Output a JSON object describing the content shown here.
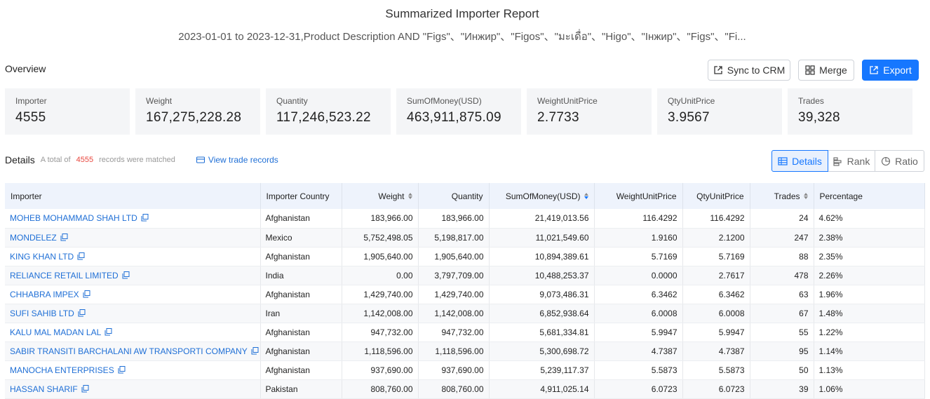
{
  "header": {
    "title": "Summarized Importer Report",
    "subtitle": "2023-01-01 to 2023-12-31,Product Description AND \"Figs\"、\"Инжир\"、\"Figos\"、\"มะเดื่อ\"、\"Higo\"、\"Інжир\"、\"Figs\"、\"Fi..."
  },
  "overview": {
    "label": "Overview",
    "buttons": {
      "sync": "Sync to CRM",
      "merge": "Merge",
      "export": "Export"
    },
    "stats": [
      {
        "label": "Importer",
        "value": "4555"
      },
      {
        "label": "Weight",
        "value": "167,275,228.28"
      },
      {
        "label": "Quantity",
        "value": "117,246,523.22"
      },
      {
        "label": "SumOfMoney(USD)",
        "value": "463,911,875.09"
      },
      {
        "label": "WeightUnitPrice",
        "value": "2.7733"
      },
      {
        "label": "QtyUnitPrice",
        "value": "3.9567"
      },
      {
        "label": "Trades",
        "value": "39,328"
      }
    ]
  },
  "details": {
    "title": "Details",
    "total_prefix": "A total of",
    "count": "4555",
    "total_suffix": "records were matched",
    "view_link": "View trade records",
    "views": {
      "details": "Details",
      "rank": "Rank",
      "ratio": "Ratio"
    }
  },
  "table": {
    "columns": [
      "Importer",
      "Importer Country",
      "Weight",
      "Quantity",
      "SumOfMoney(USD)",
      "WeightUnitPrice",
      "QtyUnitPrice",
      "Trades",
      "Percentage"
    ],
    "rows": [
      [
        "MOHEB MOHAMMAD SHAH LTD",
        "Afghanistan",
        "183,966.00",
        "183,966.00",
        "21,419,013.56",
        "116.4292",
        "116.4292",
        "24",
        "4.62%"
      ],
      [
        "MONDELEZ",
        "Mexico",
        "5,752,498.05",
        "5,198,817.00",
        "11,021,549.60",
        "1.9160",
        "2.1200",
        "247",
        "2.38%"
      ],
      [
        "KING KHAN LTD",
        "Afghanistan",
        "1,905,640.00",
        "1,905,640.00",
        "10,894,389.61",
        "5.7169",
        "5.7169",
        "88",
        "2.35%"
      ],
      [
        "RELIANCE RETAIL LIMITED",
        "India",
        "0.00",
        "3,797,709.00",
        "10,488,253.37",
        "0.0000",
        "2.7617",
        "478",
        "2.26%"
      ],
      [
        "CHHABRA IMPEX",
        "Afghanistan",
        "1,429,740.00",
        "1,429,740.00",
        "9,073,486.31",
        "6.3462",
        "6.3462",
        "63",
        "1.96%"
      ],
      [
        "SUFI SAHIB LTD",
        "Iran",
        "1,142,008.00",
        "1,142,008.00",
        "6,852,938.64",
        "6.0008",
        "6.0008",
        "67",
        "1.48%"
      ],
      [
        "KALU MAL MADAN LAL",
        "Afghanistan",
        "947,732.00",
        "947,732.00",
        "5,681,334.81",
        "5.9947",
        "5.9947",
        "55",
        "1.22%"
      ],
      [
        "SABIR TRANSITI BARCHALANI AW TRANSPORTI COMPANY",
        "Afghanistan",
        "1,118,596.00",
        "1,118,596.00",
        "5,300,698.72",
        "4.7387",
        "4.7387",
        "95",
        "1.14%"
      ],
      [
        "MANOCHA ENTERPRISES",
        "Afghanistan",
        "937,690.00",
        "937,690.00",
        "5,239,117.37",
        "5.5873",
        "5.5873",
        "50",
        "1.13%"
      ],
      [
        "HASSAN SHARIF",
        "Pakistan",
        "808,760.00",
        "808,760.00",
        "4,911,025.14",
        "6.0723",
        "6.0723",
        "39",
        "1.06%"
      ]
    ]
  },
  "colors": {
    "accent": "#1677ff",
    "link": "#1f6fd6",
    "count_red": "#e8453c",
    "header_bg": "#eef3fc",
    "card_bg": "#f4f5f7"
  }
}
